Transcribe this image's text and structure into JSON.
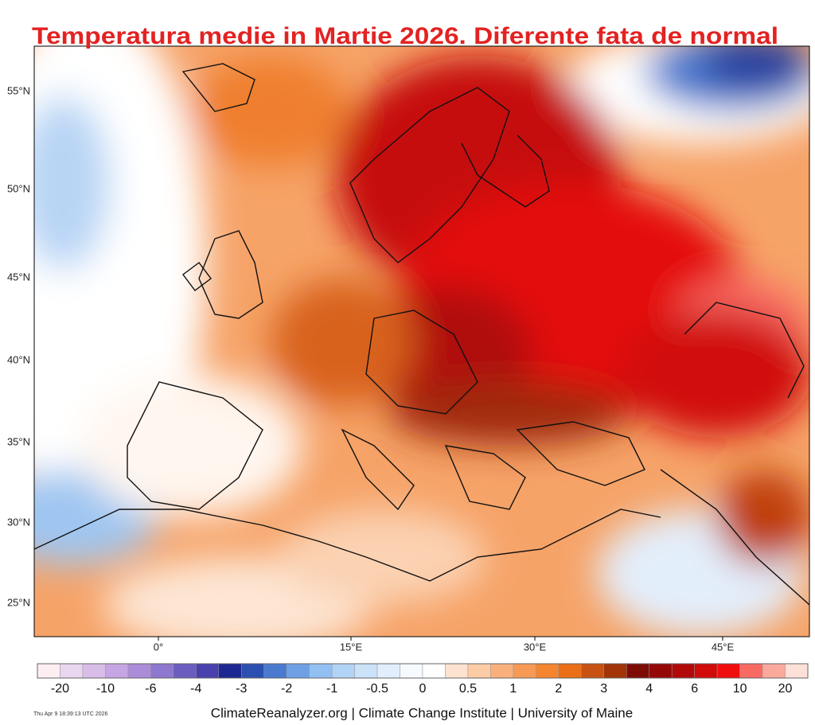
{
  "title": "Temperatura medie in Martie 2026. Diferente fata de normal",
  "lat_labels": [
    "55°N",
    "50°N",
    "45°N",
    "40°N",
    "35°N",
    "30°N",
    "25°N"
  ],
  "lon_labels": [
    "0°",
    "15°E",
    "30°E",
    "45°E"
  ],
  "colorbar": {
    "labels": [
      -20,
      -10,
      -6,
      -4,
      -3,
      -2,
      -1,
      -0.5,
      0,
      0.5,
      1,
      2,
      3,
      4,
      6,
      10,
      20
    ],
    "colors": [
      "#fdeef2",
      "#e9d6ef",
      "#d9bde9",
      "#c6a5e2",
      "#ab8cd9",
      "#8e77cf",
      "#6b5dc0",
      "#4a40ad",
      "#1d2792",
      "#2b4fb0",
      "#4a7ad0",
      "#6fa0e6",
      "#93c0f2",
      "#b1d3f6",
      "#cbe2f8",
      "#e2eefb",
      "#f6f9fd",
      "#ffffff",
      "#fde3cf",
      "#fccca6",
      "#f9b07c",
      "#f79a55",
      "#f5852f",
      "#ea6f17",
      "#c85212",
      "#a23408",
      "#7d0c06",
      "#950808",
      "#b20a0a",
      "#d10a0a",
      "#f00d0d",
      "#f86a62",
      "#fba99c",
      "#fde0d8"
    ]
  },
  "footer": "ClimateReanalyzer.org | Climate Change Institute | University of Maine",
  "timestamp": "Thu Apr  9 18:39:13 UTC 2026"
}
